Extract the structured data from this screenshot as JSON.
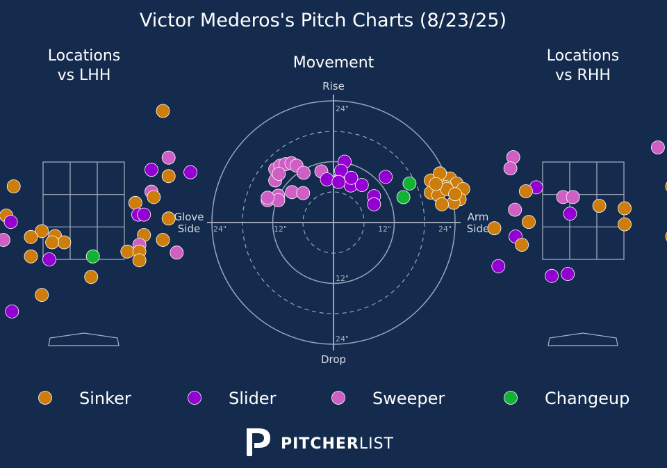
{
  "chart_data": {
    "type": "scatter",
    "title": "Victor Mederos's Pitch Charts (8/23/25)",
    "pitch_colors": {
      "Sinker": "#cc7d0b",
      "Slider": "#9300d1",
      "Sweeper": "#cf5fc5",
      "Changeup": "#12b233"
    },
    "legend": [
      {
        "name": "Sinker",
        "color": "#cc7d0b"
      },
      {
        "name": "Slider",
        "color": "#9300d1"
      },
      {
        "name": "Sweeper",
        "color": "#cf5fc5"
      },
      {
        "name": "Changeup",
        "color": "#12b233"
      }
    ],
    "lhh": {
      "title": [
        "Locations",
        "vs LHH"
      ],
      "points": [
        {
          "type": "Sinker",
          "x": 1.38,
          "y": 4.55
        },
        {
          "type": "Sweeper",
          "x": 1.48,
          "y": 3.59
        },
        {
          "type": "Slider",
          "x": 1.18,
          "y": 3.34
        },
        {
          "type": "Sinker",
          "x": 1.48,
          "y": 3.21
        },
        {
          "type": "Slider",
          "x": 1.86,
          "y": 3.29
        },
        {
          "type": "Sweeper",
          "x": 1.18,
          "y": 2.89
        },
        {
          "type": "Sinker",
          "x": 1.22,
          "y": 2.78
        },
        {
          "type": "Sinker",
          "x": 0.9,
          "y": 2.66
        },
        {
          "type": "Slider",
          "x": 0.95,
          "y": 2.42
        },
        {
          "type": "Slider",
          "x": 1.05,
          "y": 2.42
        },
        {
          "type": "Sinker",
          "x": 1.48,
          "y": 2.34
        },
        {
          "type": "Sinker",
          "x": -1.22,
          "y": 3.0
        },
        {
          "type": "Sinker",
          "x": -1.35,
          "y": 2.4
        },
        {
          "type": "Slider",
          "x": -1.27,
          "y": 2.27
        },
        {
          "type": "Sinker",
          "x": -0.73,
          "y": 2.08
        },
        {
          "type": "Sinker",
          "x": -0.5,
          "y": 1.98
        },
        {
          "type": "Sinker",
          "x": -0.92,
          "y": 1.96
        },
        {
          "type": "Sinker",
          "x": -0.34,
          "y": 1.85
        },
        {
          "type": "Sinker",
          "x": -0.55,
          "y": 1.85
        },
        {
          "type": "Sweeper",
          "x": -2.9,
          "y": 1.88
        },
        {
          "type": "Sweeper",
          "x": -1.4,
          "y": 1.9
        },
        {
          "type": "Sinker",
          "x": 1.05,
          "y": 2.0
        },
        {
          "type": "Sweeper",
          "x": 0.97,
          "y": 1.8
        },
        {
          "type": "Sinker",
          "x": 1.38,
          "y": 1.9
        },
        {
          "type": "Sinker",
          "x": 0.76,
          "y": 1.66
        },
        {
          "type": "Sinker",
          "x": 0.97,
          "y": 1.66
        },
        {
          "type": "Sweeper",
          "x": 1.62,
          "y": 1.64
        },
        {
          "type": "Sinker",
          "x": 0.97,
          "y": 1.48
        },
        {
          "type": "Changeup",
          "x": 0.16,
          "y": 1.56
        },
        {
          "type": "Sinker",
          "x": -0.92,
          "y": 1.56
        },
        {
          "type": "Slider",
          "x": -0.6,
          "y": 1.5
        },
        {
          "type": "Sinker",
          "x": 0.13,
          "y": 1.14
        },
        {
          "type": "Sinker",
          "x": -0.73,
          "y": 0.77
        },
        {
          "type": "Slider",
          "x": -1.25,
          "y": 0.43
        },
        {
          "type": "Changeup",
          "x": -2.9,
          "y": -0.15
        }
      ]
    },
    "movement": {
      "title": "Movement",
      "labels": {
        "top": "Rise",
        "bottom": "Drop",
        "left": [
          "Glove",
          "Side"
        ],
        "right": [
          "Arm",
          "Side"
        ]
      },
      "ring_labels": {
        "inner": "12\"",
        "outer": "24\""
      },
      "unit": "inches",
      "points": [
        {
          "type": "Sweeper",
          "x": -11.5,
          "y": 10.5
        },
        {
          "type": "Sweeper",
          "x": -10.5,
          "y": 11.2
        },
        {
          "type": "Sweeper",
          "x": -9.5,
          "y": 11.5
        },
        {
          "type": "Sweeper",
          "x": -8.3,
          "y": 11.7
        },
        {
          "type": "Sweeper",
          "x": -7.3,
          "y": 11.2
        },
        {
          "type": "Sweeper",
          "x": -11.5,
          "y": 8.3
        },
        {
          "type": "Sweeper",
          "x": -10.8,
          "y": 9.6
        },
        {
          "type": "Sweeper",
          "x": -5.9,
          "y": 9.8
        },
        {
          "type": "Sweeper",
          "x": -2.4,
          "y": 10.1
        },
        {
          "type": "Sweeper",
          "x": -10.9,
          "y": 5.3
        },
        {
          "type": "Sweeper",
          "x": -8.2,
          "y": 6.0
        },
        {
          "type": "Sweeper",
          "x": -6.0,
          "y": 5.8
        },
        {
          "type": "Sweeper",
          "x": -13.0,
          "y": 4.4
        },
        {
          "type": "Sweeper",
          "x": -10.9,
          "y": 4.4
        },
        {
          "type": "Sweeper",
          "x": -13.0,
          "y": 4.9
        },
        {
          "type": "Sweeper",
          "x": 1.5,
          "y": 9.0
        },
        {
          "type": "Slider",
          "x": 2.2,
          "y": 12.0
        },
        {
          "type": "Slider",
          "x": 1.5,
          "y": 10.2
        },
        {
          "type": "Slider",
          "x": -1.3,
          "y": 8.5
        },
        {
          "type": "Slider",
          "x": 3.4,
          "y": 7.3
        },
        {
          "type": "Slider",
          "x": 5.6,
          "y": 7.4
        },
        {
          "type": "Slider",
          "x": 1.0,
          "y": 8.0
        },
        {
          "type": "Slider",
          "x": 3.5,
          "y": 8.8
        },
        {
          "type": "Slider",
          "x": 10.3,
          "y": 9.0
        },
        {
          "type": "Slider",
          "x": 8.0,
          "y": 5.2
        },
        {
          "type": "Slider",
          "x": 8.0,
          "y": 3.6
        },
        {
          "type": "Changeup",
          "x": 15.0,
          "y": 7.7
        },
        {
          "type": "Changeup",
          "x": 13.8,
          "y": 5.0
        },
        {
          "type": "Sinker",
          "x": 19.2,
          "y": 8.3
        },
        {
          "type": "Sinker",
          "x": 21.4,
          "y": 9.1
        },
        {
          "type": "Sinker",
          "x": 23.0,
          "y": 8.7
        },
        {
          "type": "Sinker",
          "x": 24.3,
          "y": 7.7
        },
        {
          "type": "Sinker",
          "x": 25.6,
          "y": 6.6
        },
        {
          "type": "Sinker",
          "x": 20.7,
          "y": 7.1
        },
        {
          "type": "Sinker",
          "x": 22.2,
          "y": 7.0
        },
        {
          "type": "Sinker",
          "x": 19.2,
          "y": 5.9
        },
        {
          "type": "Sinker",
          "x": 20.7,
          "y": 5.4
        },
        {
          "type": "Sinker",
          "x": 22.4,
          "y": 6.6
        },
        {
          "type": "Sinker",
          "x": 24.9,
          "y": 4.6
        },
        {
          "type": "Sinker",
          "x": 23.7,
          "y": 3.9
        },
        {
          "type": "Sinker",
          "x": 21.4,
          "y": 3.6
        },
        {
          "type": "Sinker",
          "x": 21.0,
          "y": 9.7
        },
        {
          "type": "Sinker",
          "x": 24.0,
          "y": 5.6
        },
        {
          "type": "Sinker",
          "x": 20.2,
          "y": 7.6
        }
      ]
    },
    "rhh": {
      "title": [
        "Locations",
        "vs RHH"
      ],
      "points": [
        {
          "type": "Sweeper",
          "x": 1.3,
          "y": 3.8
        },
        {
          "type": "Sinker",
          "x": 1.7,
          "y": 3.7
        },
        {
          "type": "Sweeper",
          "x": -1.22,
          "y": 3.6
        },
        {
          "type": "Sweeper",
          "x": -1.27,
          "y": 3.37
        },
        {
          "type": "Sinker",
          "x": 1.55,
          "y": 3.0
        },
        {
          "type": "Slider",
          "x": -0.82,
          "y": 2.98
        },
        {
          "type": "Sinker",
          "x": -1.0,
          "y": 2.9
        },
        {
          "type": "Sweeper",
          "x": -0.35,
          "y": 2.78
        },
        {
          "type": "Sweeper",
          "x": -0.18,
          "y": 2.78
        },
        {
          "type": "Sinker",
          "x": 0.28,
          "y": 2.6
        },
        {
          "type": "Sinker",
          "x": 0.72,
          "y": 2.55
        },
        {
          "type": "Sweeper",
          "x": -1.19,
          "y": 2.52
        },
        {
          "type": "Slider",
          "x": -0.23,
          "y": 2.44
        },
        {
          "type": "Sinker",
          "x": -0.95,
          "y": 2.27
        },
        {
          "type": "Sinker",
          "x": 0.72,
          "y": 2.22
        },
        {
          "type": "Sinker",
          "x": -1.55,
          "y": 2.14
        },
        {
          "type": "Slider",
          "x": -1.18,
          "y": 1.97
        },
        {
          "type": "Sinker",
          "x": 1.55,
          "y": 1.97
        },
        {
          "type": "Sinker",
          "x": -1.07,
          "y": 1.8
        },
        {
          "type": "Slider",
          "x": -1.48,
          "y": 1.36
        },
        {
          "type": "Slider",
          "x": -0.55,
          "y": 1.16
        },
        {
          "type": "Slider",
          "x": -0.27,
          "y": 1.2
        }
      ]
    }
  },
  "brand": {
    "strong": "PITCHER",
    "light": "LIST"
  }
}
